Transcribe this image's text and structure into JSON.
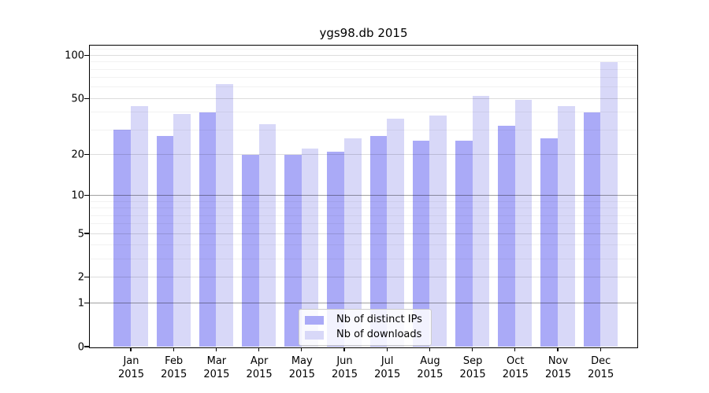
{
  "chart_data": {
    "type": "bar",
    "title": "ygs98.db 2015",
    "year_label": "2015",
    "categories": [
      "Jan",
      "Feb",
      "Mar",
      "Apr",
      "May",
      "Jun",
      "Jul",
      "Aug",
      "Sep",
      "Oct",
      "Nov",
      "Dec"
    ],
    "series": [
      {
        "name": "Nb of distinct IPs",
        "color": "#aaaaf7",
        "values": [
          30,
          27,
          40,
          20,
          20,
          21,
          27,
          25,
          25,
          32,
          26,
          40
        ]
      },
      {
        "name": "Nb of downloads",
        "color": "#d8d8f8",
        "values": [
          44,
          39,
          63,
          33,
          22,
          26,
          36,
          38,
          52,
          49,
          44,
          90
        ]
      }
    ],
    "yscale": "log1p",
    "ylim": [
      0,
      117
    ],
    "yticks": [
      0,
      1,
      2,
      5,
      10,
      20,
      50,
      100
    ],
    "minor_yticks": [
      3,
      4,
      6,
      7,
      8,
      9,
      30,
      40,
      60,
      70,
      80,
      90,
      110
    ],
    "grid": true,
    "legend_position": "lower center"
  },
  "colors": {
    "bar_dark": "#aaaaf7",
    "bar_light": "#d8d8f8",
    "spine": "#000000",
    "grid_decade": "#a6a6a6",
    "grid_major": "#dcdcdc",
    "grid_minor": "#f0f0f0",
    "legend_border": "#cccccc"
  }
}
